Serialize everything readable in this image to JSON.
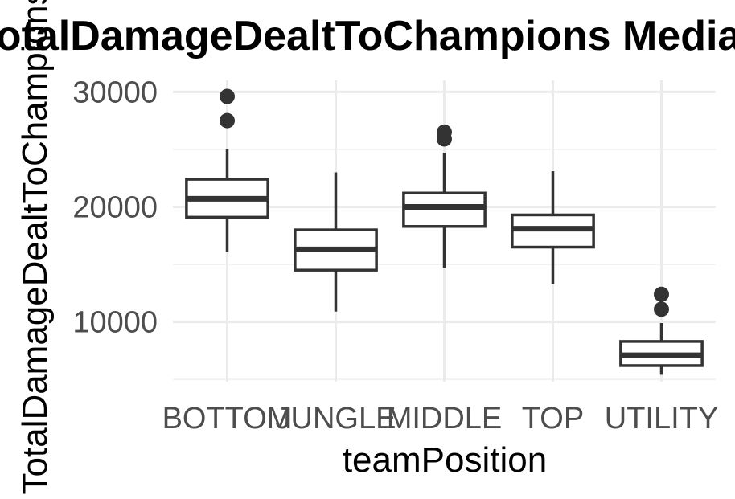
{
  "chart_data": {
    "type": "box",
    "title": "TotalDamageDealtToChampions Median",
    "xlabel": "teamPosition",
    "ylabel": "TotalDamageDealtToChampions",
    "categories": [
      "BOTTOM",
      "JUNGLE",
      "MIDDLE",
      "TOP",
      "UTILITY"
    ],
    "boxes": [
      {
        "category": "BOTTOM",
        "min": 16100,
        "q1": 19100,
        "median": 20700,
        "q3": 22400,
        "max": 25000,
        "outliers": [
          27500,
          29600
        ]
      },
      {
        "category": "JUNGLE",
        "min": 10900,
        "q1": 14500,
        "median": 16300,
        "q3": 18000,
        "max": 23000,
        "outliers": []
      },
      {
        "category": "MIDDLE",
        "min": 14700,
        "q1": 18300,
        "median": 20000,
        "q3": 21200,
        "max": 24700,
        "outliers": [
          25900,
          26500
        ]
      },
      {
        "category": "TOP",
        "min": 13300,
        "q1": 16500,
        "median": 18100,
        "q3": 19300,
        "max": 23100,
        "outliers": []
      },
      {
        "category": "UTILITY",
        "min": 5400,
        "q1": 6200,
        "median": 7100,
        "q3": 8300,
        "max": 9900,
        "outliers": [
          11100,
          12400
        ]
      }
    ],
    "ylim": [
      4800,
      31000
    ],
    "yticks": [
      10000,
      20000,
      30000
    ],
    "grid": true,
    "legend": "none"
  }
}
